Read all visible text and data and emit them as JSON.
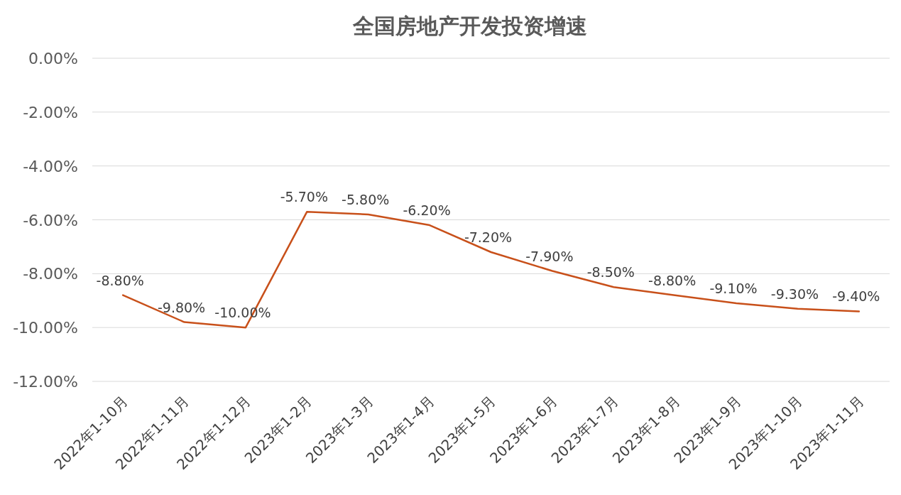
{
  "chart_data": {
    "type": "line",
    "title": "全国房地产开发投资增速",
    "categories": [
      "2022年1-10月",
      "2022年1-11月",
      "2022年1-12月",
      "2023年1-2月",
      "2023年1-3月",
      "2023年1-4月",
      "2023年1-5月",
      "2023年1-6月",
      "2023年1-7月",
      "2023年1-8月",
      "2023年1-9月",
      "2023年1-10月",
      "2023年1-11月"
    ],
    "values": [
      -8.8,
      -9.8,
      -10.0,
      -5.7,
      -5.8,
      -6.2,
      -7.2,
      -7.9,
      -8.5,
      -8.8,
      -9.1,
      -9.3,
      -9.4
    ],
    "value_labels": [
      "-8.80%",
      "-9.80%",
      "-10.00%",
      "-5.70%",
      "-5.80%",
      "-6.20%",
      "-7.20%",
      "-7.90%",
      "-8.50%",
      "-8.80%",
      "-9.10%",
      "-9.30%",
      "-9.40%"
    ],
    "color": "#c8501a",
    "line_style": "solid",
    "ylim": [
      -12,
      0
    ],
    "yticks": [
      {
        "value": 0,
        "label": "0.00%"
      },
      {
        "value": -2,
        "label": "-2.00%"
      },
      {
        "value": -4,
        "label": "-4.00%"
      },
      {
        "value": -6,
        "label": "-6.00%"
      },
      {
        "value": -8,
        "label": "-8.00%"
      },
      {
        "value": -10,
        "label": "-10.00%"
      },
      {
        "value": -12,
        "label": "-12.00%"
      }
    ],
    "grid": "y"
  }
}
